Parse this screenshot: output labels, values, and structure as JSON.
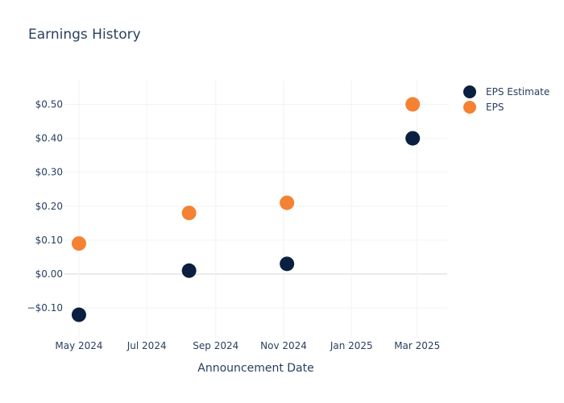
{
  "chart_data": {
    "type": "scatter",
    "title": "Earnings History",
    "xlabel": "Announcement Date",
    "ylabel": "",
    "x_tick_labels": [
      "May 2024",
      "Jul 2024",
      "Sep 2024",
      "Nov 2024",
      "Jan 2025",
      "Mar 2025"
    ],
    "x_tick_dates": [
      "2024-05-01",
      "2024-07-01",
      "2024-09-01",
      "2024-11-01",
      "2025-01-01",
      "2025-03-01"
    ],
    "xlim": [
      "2024-04-18",
      "2025-03-28"
    ],
    "y_tick_values": [
      -0.1,
      0,
      0.1,
      0.2,
      0.3,
      0.4,
      0.5
    ],
    "y_tick_labels": [
      "−$0.10",
      "$0.00",
      "$0.10",
      "$0.20",
      "$0.30",
      "$0.40",
      "$0.50"
    ],
    "ylim": [
      -0.19,
      0.57
    ],
    "grid": true,
    "legend_position": "top-right",
    "series": [
      {
        "name": "EPS Estimate",
        "color": "#0b1f40",
        "x": [
          "2024-05-01",
          "2024-08-08",
          "2024-11-04",
          "2025-02-25"
        ],
        "y": [
          -0.12,
          0.01,
          0.03,
          0.4
        ]
      },
      {
        "name": "EPS",
        "color": "#f58233",
        "x": [
          "2024-05-01",
          "2024-08-08",
          "2024-11-04",
          "2025-02-25"
        ],
        "y": [
          0.09,
          0.18,
          0.21,
          0.5
        ]
      }
    ]
  }
}
